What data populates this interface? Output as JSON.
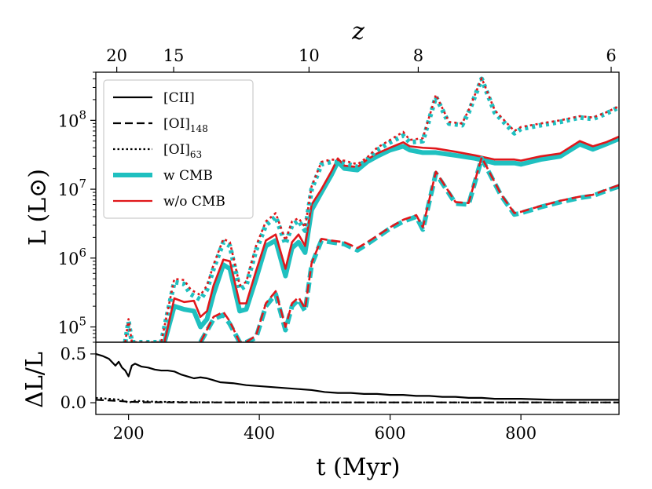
{
  "chart_data": [
    {
      "type": "line",
      "panel": "top",
      "ylabel": "L (L⊙)",
      "yscale": "log",
      "ylim": [
        60000,
        500000000
      ],
      "xlim": [
        150,
        950
      ],
      "yticks": [
        {
          "value": 100000,
          "base": "10",
          "exp": "5"
        },
        {
          "value": 1000000,
          "base": "10",
          "exp": "6"
        },
        {
          "value": 10000000,
          "base": "10",
          "exp": "7"
        },
        {
          "value": 100000000,
          "base": "10",
          "exp": "8"
        }
      ],
      "top_axis": {
        "label": "z",
        "ticks": [
          {
            "label": "20",
            "t": 182
          },
          {
            "label": "15",
            "t": 269
          },
          {
            "label": "10",
            "t": 476
          },
          {
            "label": "8",
            "t": 643
          },
          {
            "label": "6",
            "t": 938
          }
        ]
      },
      "legend": {
        "placement": "top-left",
        "entries": [
          {
            "label": "[CII]",
            "style": "solid",
            "color": "#000000"
          },
          {
            "label": "[OI]",
            "sub": "148",
            "style": "dashed",
            "color": "#000000"
          },
          {
            "label": "[OI]",
            "sub": "63",
            "style": "dotted",
            "color": "#000000"
          },
          {
            "label": "w CMB",
            "style": "thick",
            "color": "#1fc0c0"
          },
          {
            "label": "w/o CMB",
            "style": "solid",
            "color": "#e0171b"
          }
        ]
      },
      "series": [
        {
          "name": "[CII] w CMB",
          "x": [
            255,
            270,
            285,
            300,
            310,
            320,
            330,
            345,
            355,
            370,
            380,
            395,
            410,
            425,
            440,
            450,
            460,
            470,
            480,
            495,
            510,
            520,
            530,
            550,
            565,
            580,
            600,
            620,
            630,
            650,
            670,
            700,
            730,
            760,
            790,
            800,
            830,
            860,
            890,
            910,
            930,
            950
          ],
          "y": [
            60000,
            200000,
            180000,
            170000,
            100000,
            130000,
            300000,
            800000,
            700000,
            170000,
            180000,
            500000,
            1500000,
            1800000,
            550000,
            1400000,
            1700000,
            1200000,
            5000000,
            9000000,
            16000000,
            25000000,
            20000000,
            19000000,
            25000000,
            30000000,
            37000000,
            42000000,
            37000000,
            34000000,
            34000000,
            31000000,
            28000000,
            24000000,
            24000000,
            23000000,
            27000000,
            30000000,
            45000000,
            38000000,
            45000000,
            54000000
          ]
        },
        {
          "name": "[CII] w/o CMB",
          "x": [
            255,
            270,
            285,
            300,
            310,
            320,
            330,
            345,
            355,
            370,
            380,
            395,
            410,
            425,
            440,
            450,
            460,
            470,
            480,
            495,
            510,
            520,
            530,
            550,
            565,
            580,
            600,
            620,
            630,
            650,
            670,
            700,
            730,
            760,
            790,
            800,
            830,
            860,
            890,
            910,
            930,
            950
          ],
          "y": [
            60000,
            260000,
            230000,
            240000,
            140000,
            170000,
            400000,
            950000,
            900000,
            220000,
            220000,
            650000,
            1800000,
            2200000,
            700000,
            1700000,
            2200000,
            1500000,
            6000000,
            10000000,
            18000000,
            28000000,
            22000000,
            21000000,
            27000000,
            33000000,
            40000000,
            48000000,
            42000000,
            40000000,
            39000000,
            35000000,
            31000000,
            27000000,
            27000000,
            26000000,
            30000000,
            33000000,
            50000000,
            42000000,
            48000000,
            58000000
          ]
        },
        {
          "name": "[OI]148 w CMB",
          "x": [
            310,
            330,
            345,
            355,
            370,
            380,
            395,
            410,
            425,
            440,
            450,
            460,
            470,
            480,
            495,
            510,
            530,
            550,
            565,
            580,
            600,
            620,
            640,
            650,
            670,
            700,
            720,
            740,
            770,
            790,
            800,
            830,
            860,
            890,
            910,
            930,
            950
          ],
          "y": [
            60000,
            130000,
            150000,
            110000,
            60000,
            60000,
            70000,
            200000,
            300000,
            90000,
            200000,
            250000,
            170000,
            800000,
            1800000,
            1700000,
            1600000,
            1300000,
            1600000,
            2000000,
            2700000,
            3400000,
            4000000,
            2600000,
            17000000,
            6200000,
            6000000,
            28000000,
            8000000,
            4300000,
            4500000,
            5500000,
            6500000,
            7500000,
            8000000,
            9500000,
            11000000
          ]
        },
        {
          "name": "[OI]148 w/o CMB",
          "x": [
            310,
            330,
            345,
            355,
            370,
            380,
            395,
            410,
            425,
            440,
            450,
            460,
            470,
            480,
            495,
            510,
            530,
            550,
            565,
            580,
            600,
            620,
            640,
            650,
            670,
            700,
            720,
            740,
            770,
            790,
            800,
            830,
            860,
            890,
            910,
            930,
            950
          ],
          "y": [
            60000,
            140000,
            165000,
            120000,
            60000,
            60000,
            75000,
            220000,
            330000,
            100000,
            220000,
            270000,
            185000,
            850000,
            1900000,
            1800000,
            1700000,
            1400000,
            1700000,
            2100000,
            2800000,
            3600000,
            4200000,
            2800000,
            18000000,
            6500000,
            6300000,
            29000000,
            8300000,
            4500000,
            4700000,
            5700000,
            6800000,
            7800000,
            8300000,
            9800000,
            11500000
          ]
        },
        {
          "name": "[OI]63 w CMB",
          "x": [
            195,
            200,
            205,
            250,
            270,
            285,
            295,
            310,
            320,
            330,
            345,
            355,
            370,
            380,
            395,
            410,
            425,
            440,
            450,
            460,
            470,
            480,
            495,
            510,
            530,
            550,
            565,
            580,
            600,
            620,
            630,
            650,
            670,
            690,
            710,
            720,
            740,
            760,
            790,
            800,
            830,
            860,
            890,
            910,
            930,
            950
          ],
          "y": [
            60000,
            120000,
            60000,
            60000,
            450000,
            420000,
            300000,
            250000,
            350000,
            700000,
            1700000,
            1500000,
            350000,
            400000,
            1300000,
            3000000,
            4000000,
            1600000,
            3000000,
            3500000,
            2500000,
            10000000,
            23000000,
            25000000,
            24000000,
            21000000,
            27000000,
            37000000,
            48000000,
            60000000,
            48000000,
            50000000,
            220000000,
            90000000,
            85000000,
            130000000,
            400000000,
            130000000,
            65000000,
            75000000,
            85000000,
            95000000,
            110000000,
            105000000,
            125000000,
            155000000
          ]
        },
        {
          "name": "[OI]63 w/o CMB",
          "x": [
            195,
            200,
            205,
            250,
            270,
            285,
            295,
            310,
            320,
            330,
            345,
            355,
            370,
            380,
            395,
            410,
            425,
            440,
            450,
            460,
            470,
            480,
            495,
            510,
            530,
            550,
            565,
            580,
            600,
            620,
            630,
            650,
            670,
            690,
            710,
            720,
            740,
            760,
            790,
            800,
            830,
            860,
            890,
            910,
            930,
            950
          ],
          "y": [
            60000,
            130000,
            60000,
            60000,
            500000,
            480000,
            350000,
            290000,
            400000,
            800000,
            1900000,
            1700000,
            400000,
            450000,
            1500000,
            3400000,
            4500000,
            1800000,
            3400000,
            3800000,
            2800000,
            11000000,
            25000000,
            27000000,
            26000000,
            23000000,
            29000000,
            40000000,
            52000000,
            68000000,
            52000000,
            55000000,
            235000000,
            95000000,
            90000000,
            140000000,
            410000000,
            140000000,
            70000000,
            80000000,
            90000000,
            100000000,
            115000000,
            110000000,
            130000000,
            160000000
          ]
        }
      ]
    },
    {
      "type": "line",
      "panel": "bottom",
      "xlabel": "t (Myr)",
      "ylabel": "ΔL/L",
      "xlim": [
        150,
        950
      ],
      "ylim": [
        -0.12,
        0.62
      ],
      "xticks": [
        200,
        400,
        600,
        800
      ],
      "yticks": [
        0.0,
        0.5
      ],
      "series": [
        {
          "name": "[CII]",
          "style": "solid",
          "x": [
            150,
            160,
            170,
            180,
            185,
            190,
            195,
            200,
            205,
            210,
            220,
            230,
            240,
            250,
            260,
            270,
            280,
            290,
            300,
            310,
            320,
            330,
            340,
            360,
            380,
            400,
            420,
            440,
            460,
            480,
            500,
            520,
            540,
            560,
            580,
            600,
            620,
            640,
            660,
            680,
            700,
            720,
            740,
            760,
            780,
            800,
            850,
            900,
            950
          ],
          "y": [
            0.5,
            0.48,
            0.45,
            0.38,
            0.42,
            0.36,
            0.33,
            0.27,
            0.38,
            0.4,
            0.37,
            0.36,
            0.34,
            0.33,
            0.33,
            0.32,
            0.29,
            0.27,
            0.25,
            0.26,
            0.25,
            0.23,
            0.21,
            0.2,
            0.18,
            0.17,
            0.16,
            0.15,
            0.14,
            0.13,
            0.11,
            0.1,
            0.1,
            0.09,
            0.09,
            0.08,
            0.08,
            0.07,
            0.07,
            0.06,
            0.06,
            0.05,
            0.05,
            0.04,
            0.04,
            0.04,
            0.03,
            0.03,
            0.03
          ]
        },
        {
          "name": "[OI]148",
          "style": "dashed",
          "x": [
            150,
            180,
            200,
            220,
            300,
            500,
            700,
            950
          ],
          "y": [
            0.03,
            0.02,
            0.01,
            0.005,
            0.003,
            0.003,
            0.003,
            0.003
          ]
        },
        {
          "name": "[OI]63",
          "style": "dotted",
          "x": [
            150,
            170,
            190,
            200,
            210,
            240,
            300,
            400,
            600,
            950
          ],
          "y": [
            0.05,
            0.04,
            0.03,
            0.0,
            0.02,
            0.01,
            0.005,
            0.003,
            0.003,
            0.003
          ]
        }
      ]
    }
  ]
}
